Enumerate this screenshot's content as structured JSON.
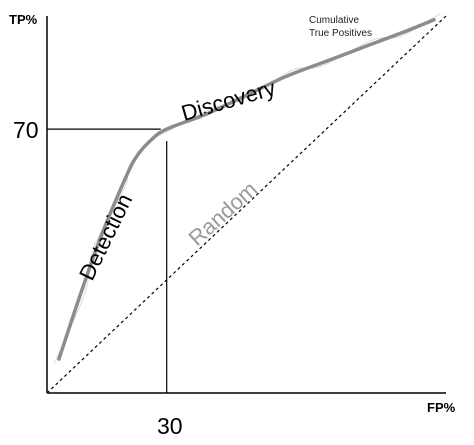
{
  "chart_data": {
    "type": "line",
    "xlabel": "FP%",
    "ylabel": "TP%",
    "xlim": [
      0,
      100
    ],
    "ylim": [
      0,
      100
    ],
    "grid": false,
    "x_ticks": [
      "30"
    ],
    "y_ticks": [
      "70"
    ],
    "series": [
      {
        "name": "Cumulative True Positives",
        "color": "#8c8c8c",
        "style": "solid",
        "x": [
          3,
          8,
          13,
          18,
          22,
          26,
          30,
          40,
          50,
          60,
          70,
          80,
          90,
          97
        ],
        "y": [
          9,
          25,
          40,
          53,
          62,
          67,
          70,
          74,
          79,
          84,
          88,
          92,
          96,
          99
        ]
      },
      {
        "name": "Random",
        "color": "#000000",
        "style": "dashed",
        "x": [
          0,
          100
        ],
        "y": [
          0,
          100
        ]
      }
    ],
    "reference_point": {
      "x": 30,
      "y": 70
    },
    "annotations": {
      "detection": "Detection",
      "discovery": "Discovery",
      "random": "Random",
      "cumulative_line1": "Cumulative",
      "cumulative_line2": "True Positives"
    },
    "colors": {
      "axis": "#000000",
      "curve": "#8c8c8c",
      "faint_curve": "#d9d9d9",
      "random_label": "#9a9a9a"
    }
  }
}
